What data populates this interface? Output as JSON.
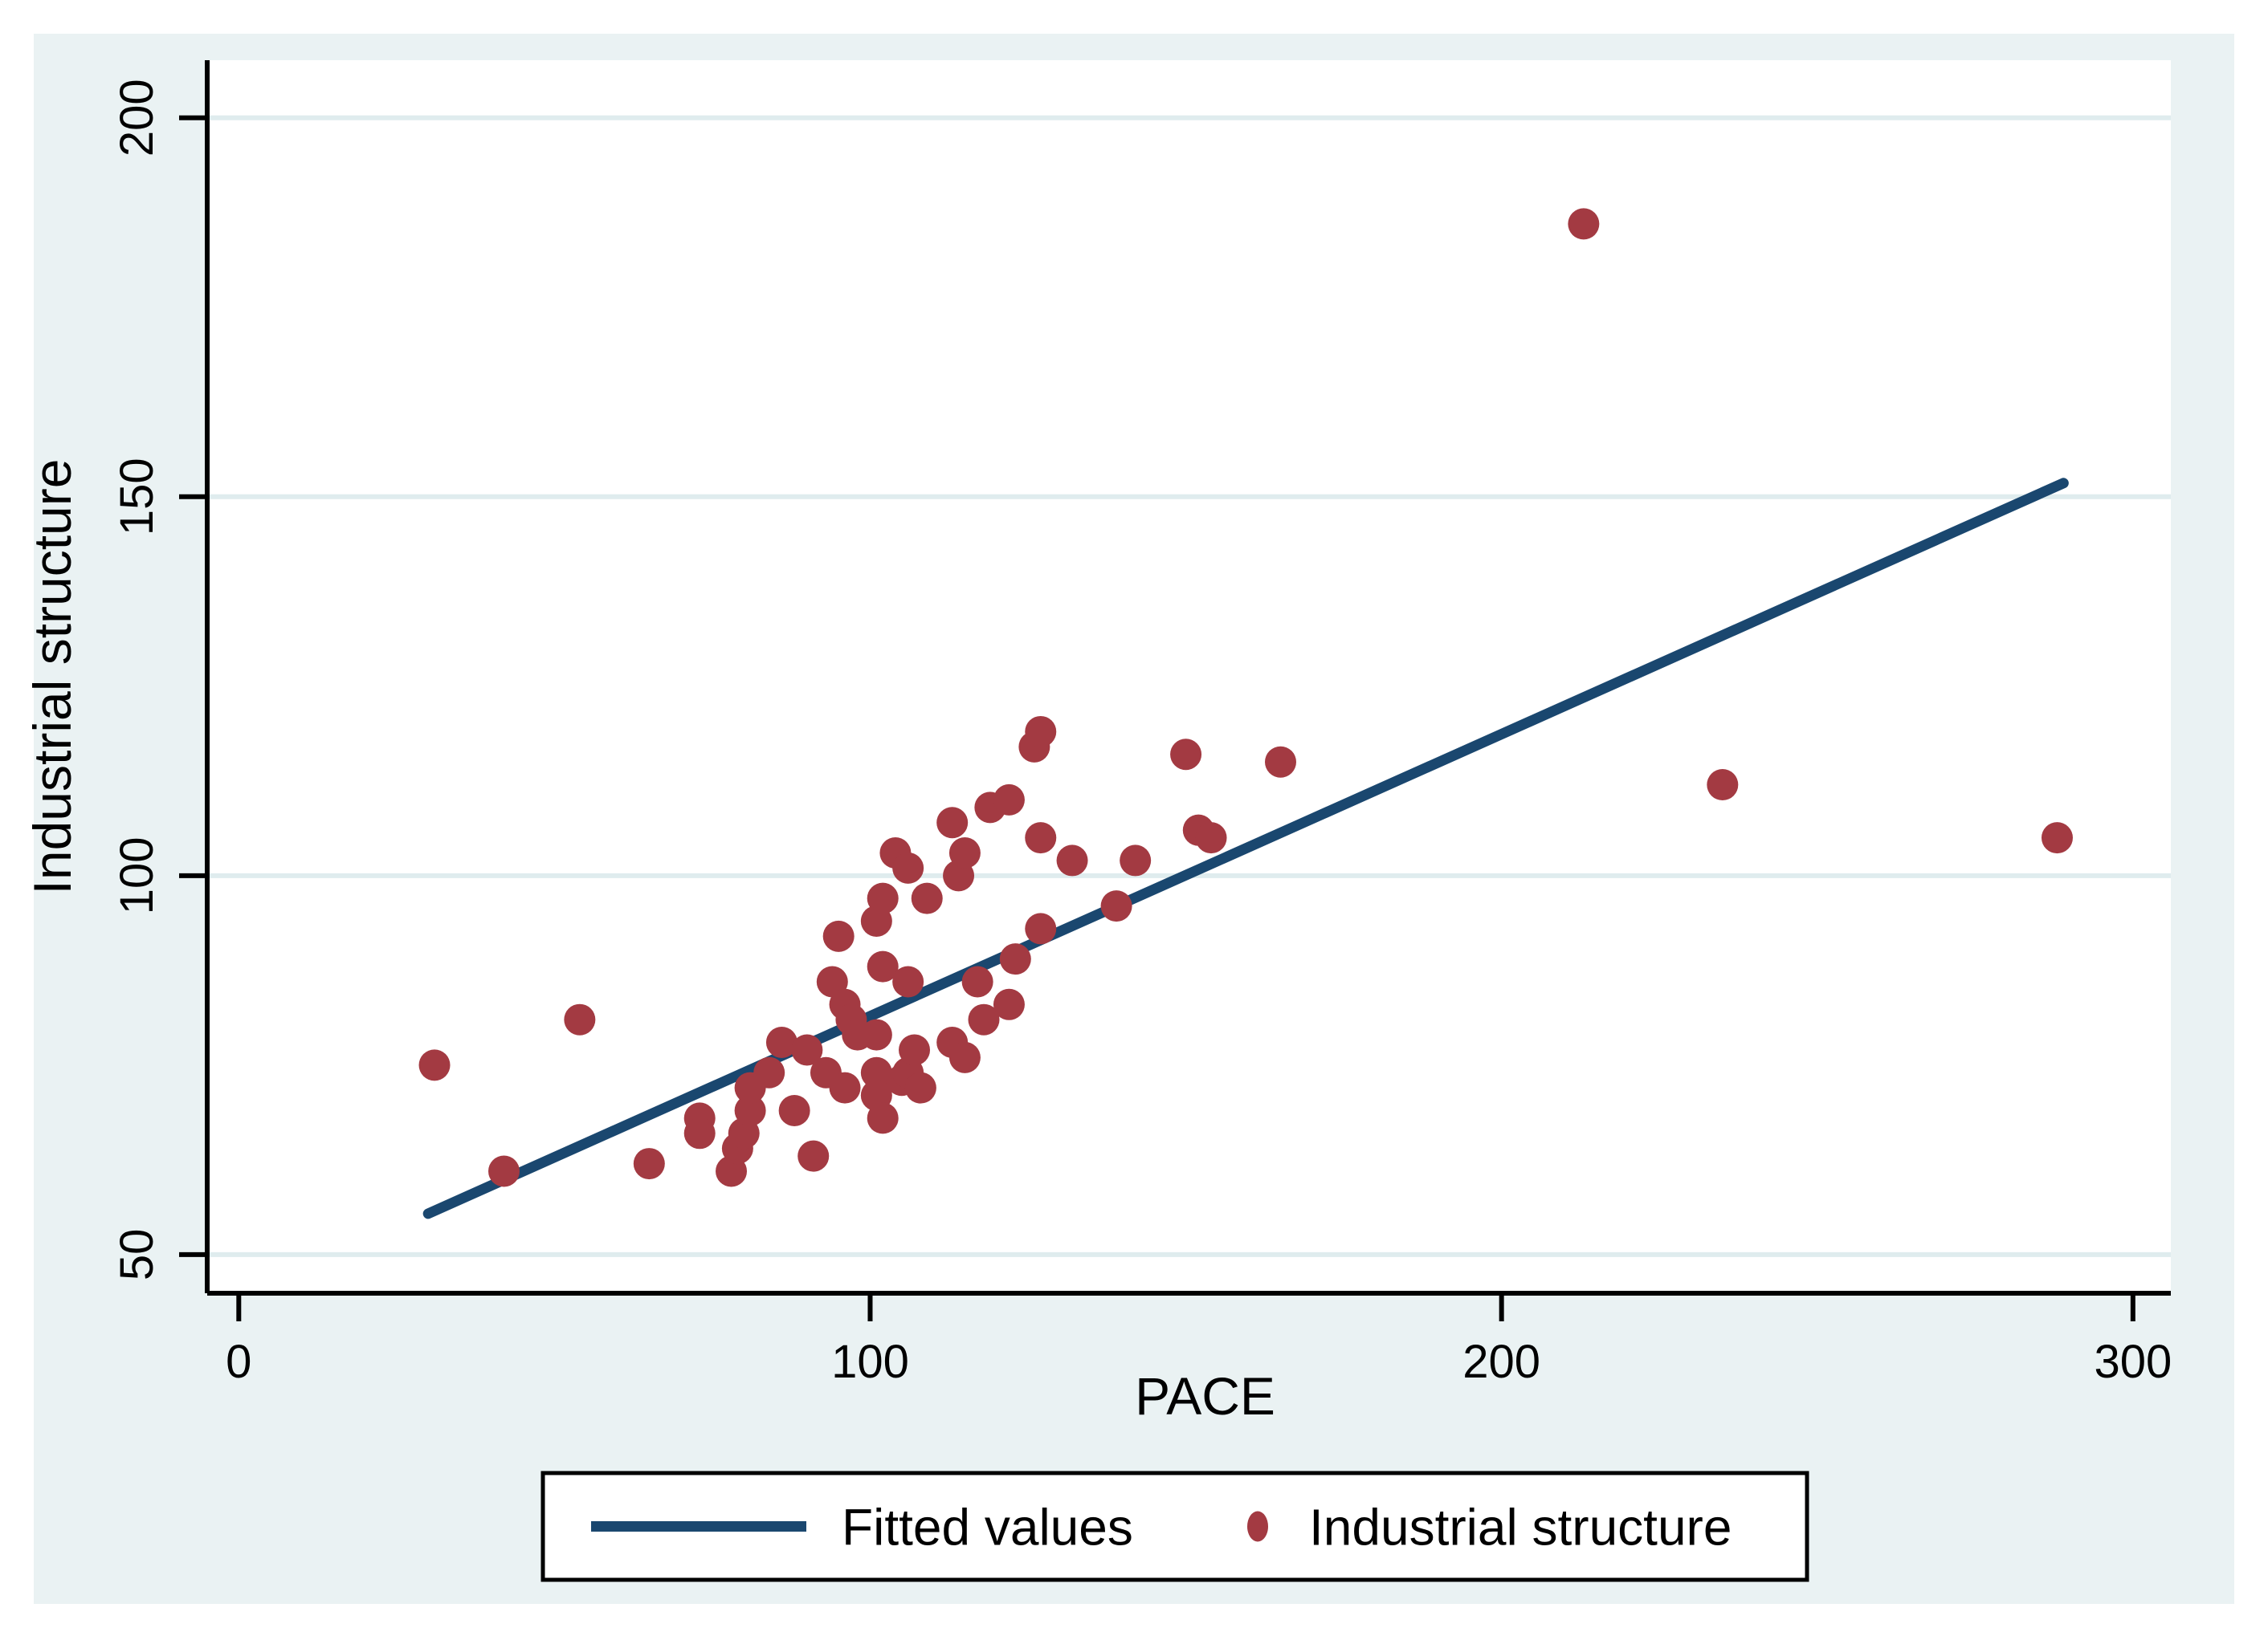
{
  "figure": {
    "background_color": "#eaf2f3",
    "plot_background_color": "#ffffff",
    "grid_color": "#dfecee",
    "axis_color": "#000000",
    "outer_border_color": "#ffffff",
    "scatter_color": "#a33a42",
    "line_color": "#1a476f"
  },
  "chart_data": {
    "type": "scatter",
    "title": "",
    "xlabel": "PACE",
    "ylabel": "Industrial structure",
    "xlim": [
      -5,
      306
    ],
    "ylim": [
      44.9,
      207.6
    ],
    "x_ticks": [
      0,
      100,
      200,
      300
    ],
    "y_ticks": [
      50,
      100,
      150,
      200
    ],
    "x_tick_labels": [
      "0",
      "100",
      "200",
      "300"
    ],
    "y_tick_labels": [
      "50",
      "100",
      "150",
      "200"
    ],
    "grid": "horizontal gridlines at each y tick",
    "legend_position": "bottom center, outside plot area",
    "series": [
      {
        "name": "Fitted values",
        "type": "line",
        "color": "#1a476f",
        "x": [
          30,
          289
        ],
        "y": [
          55.4,
          151.8
        ]
      },
      {
        "name": "Industrial structure",
        "type": "scatter",
        "color": "#a33a42",
        "points": [
          [
            31,
            75
          ],
          [
            42,
            61
          ],
          [
            54,
            81
          ],
          [
            65,
            62
          ],
          [
            73,
            68
          ],
          [
            73,
            66
          ],
          [
            78,
            61
          ],
          [
            79,
            64
          ],
          [
            80,
            66
          ],
          [
            81,
            69
          ],
          [
            81,
            72
          ],
          [
            84,
            74
          ],
          [
            86,
            78
          ],
          [
            88,
            69
          ],
          [
            90,
            77
          ],
          [
            91,
            63
          ],
          [
            93,
            74
          ],
          [
            94,
            86
          ],
          [
            95,
            92
          ],
          [
            96,
            72
          ],
          [
            96,
            83
          ],
          [
            97,
            81
          ],
          [
            98,
            79
          ],
          [
            101,
            79
          ],
          [
            101,
            74
          ],
          [
            101,
            71
          ],
          [
            101,
            94
          ],
          [
            102,
            68
          ],
          [
            102,
            88
          ],
          [
            102,
            97
          ],
          [
            104,
            103
          ],
          [
            105,
            73
          ],
          [
            106,
            74
          ],
          [
            106,
            86
          ],
          [
            106,
            101
          ],
          [
            107,
            77
          ],
          [
            108,
            72
          ],
          [
            109,
            97
          ],
          [
            113,
            78
          ],
          [
            113,
            107
          ],
          [
            114,
            100
          ],
          [
            115,
            76
          ],
          [
            115,
            103
          ],
          [
            117,
            86
          ],
          [
            118,
            81
          ],
          [
            119,
            109
          ],
          [
            122,
            83
          ],
          [
            122,
            110
          ],
          [
            123,
            89
          ],
          [
            126,
            117
          ],
          [
            127,
            93
          ],
          [
            127,
            105
          ],
          [
            127,
            119
          ],
          [
            132,
            102
          ],
          [
            139,
            96
          ],
          [
            142,
            102
          ],
          [
            150,
            116
          ],
          [
            152,
            106
          ],
          [
            154,
            105
          ],
          [
            165,
            115
          ],
          [
            213,
            186
          ],
          [
            235,
            112
          ],
          [
            288,
            105
          ]
        ]
      }
    ]
  },
  "legend": {
    "items": [
      {
        "label": "Fitted values",
        "marker": "line-sample"
      },
      {
        "label": "Industrial structure",
        "marker": "dot"
      }
    ]
  }
}
